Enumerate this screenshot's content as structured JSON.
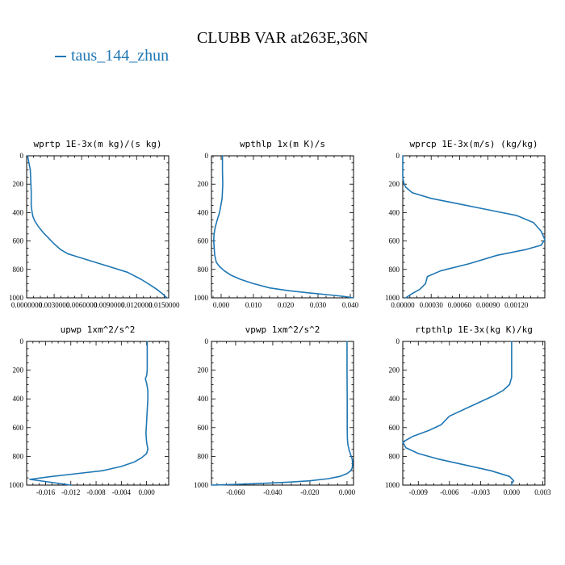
{
  "page": {
    "title": "CLUBB VAR at263E,36N",
    "legend": {
      "label": "taus_144_zhun",
      "color": "#1f77b4"
    }
  },
  "chart_data": [
    {
      "type": "line",
      "title": "wprtp  1E-3x(m kg)/(s kg)",
      "xlim": [
        0,
        0.0155
      ],
      "ylim": [
        1000,
        0
      ],
      "xticks": [
        0,
        0.003,
        0.006,
        0.009,
        0.012,
        0.015
      ],
      "xticklabels": [
        "0.0000000",
        "0.0030000",
        "0.0060000",
        "0.0090000",
        "0.0120000",
        "0.0150000"
      ],
      "yticks": [
        0,
        200,
        400,
        600,
        800,
        1000
      ],
      "series": [
        {
          "x": [
            0.0001,
            0.0004,
            0.0005,
            0.0005,
            0.0006,
            0.0007,
            0.0009,
            0.0013,
            0.0018,
            0.0024,
            0.003,
            0.0037,
            0.0045,
            0.0055,
            0.007,
            0.009,
            0.011,
            0.0125,
            0.0135,
            0.0142,
            0.0148,
            0.0153
          ],
          "y": [
            0,
            100,
            250,
            350,
            400,
            430,
            460,
            500,
            540,
            580,
            620,
            660,
            690,
            710,
            740,
            780,
            820,
            870,
            910,
            940,
            970,
            1000
          ]
        }
      ]
    },
    {
      "type": "line",
      "title": "wpthlp  1x(m K)/s",
      "xlim": [
        -0.003,
        0.041
      ],
      "ylim": [
        1000,
        0
      ],
      "xticks": [
        0,
        0.01,
        0.02,
        0.03,
        0.04
      ],
      "xticklabels": [
        "0.000",
        "0.010",
        "0.020",
        "0.030",
        "0.040"
      ],
      "yticks": [
        0,
        200,
        400,
        600,
        800,
        1000
      ],
      "series": [
        {
          "x": [
            0.0004,
            0.0004,
            0.0005,
            0.0003,
            -0.0005,
            -0.0012,
            -0.0018,
            -0.0022,
            -0.0023,
            -0.002,
            -0.0015,
            -0.0005,
            0.001,
            0.003,
            0.006,
            0.01,
            0.015,
            0.021,
            0.027,
            0.033,
            0.038,
            0.041
          ],
          "y": [
            0,
            100,
            200,
            300,
            400,
            450,
            500,
            550,
            600,
            700,
            750,
            780,
            810,
            840,
            870,
            900,
            930,
            950,
            965,
            978,
            990,
            1000
          ]
        }
      ]
    },
    {
      "type": "line",
      "title": "wprcp  1E-3x(m/s) (kg/kg)",
      "xlim": [
        0,
        0.0015
      ],
      "ylim": [
        1000,
        0
      ],
      "xticks": [
        0,
        0.0003,
        0.0006,
        0.0009,
        0.0012
      ],
      "xticklabels": [
        "0.00000",
        "0.00030",
        "0.00060",
        "0.00090",
        "0.00120"
      ],
      "yticks": [
        0,
        200,
        400,
        600,
        800,
        1000
      ],
      "series": [
        {
          "x": [
            0,
            0,
            1e-05,
            3e-05,
            0.0001,
            0.0003,
            0.0006,
            0.0009,
            0.0012,
            0.00138,
            0.00146,
            0.0015,
            0.00146,
            0.0013,
            0.001,
            0.0007,
            0.0004,
            0.00026,
            0.00024,
            0.00018,
            0.0001,
            3e-05
          ],
          "y": [
            0,
            150,
            190,
            220,
            260,
            300,
            340,
            380,
            420,
            470,
            530,
            590,
            630,
            660,
            700,
            760,
            810,
            850,
            900,
            940,
            970,
            1000
          ]
        }
      ]
    },
    {
      "type": "line",
      "title": "upwp  1xm^2/s^2",
      "xlim": [
        -0.019,
        0.0035
      ],
      "ylim": [
        1000,
        0
      ],
      "xticks": [
        -0.016,
        -0.012,
        -0.008,
        -0.004,
        0
      ],
      "xticklabels": [
        "-0.016",
        "-0.012",
        "-0.008",
        "-0.004",
        "0.000"
      ],
      "yticks": [
        0,
        200,
        400,
        600,
        800,
        1000
      ],
      "series": [
        {
          "x": [
            0.0001,
            0.0001,
            0.0001,
            0,
            -0.0002,
            0,
            0.0002,
            0.0002,
            0.0001,
            0,
            -0.0001,
            0,
            0.0002,
            0,
            -0.0008,
            -0.002,
            -0.004,
            -0.007,
            -0.011,
            -0.015,
            -0.0185,
            -0.012
          ],
          "y": [
            0,
            100,
            200,
            240,
            260,
            290,
            340,
            400,
            480,
            560,
            640,
            700,
            750,
            780,
            810,
            840,
            870,
            900,
            920,
            940,
            960,
            1000
          ]
        }
      ]
    },
    {
      "type": "line",
      "title": "vpwp  1xm^2/s^2",
      "xlim": [
        -0.073,
        0.0035
      ],
      "ylim": [
        1000,
        0
      ],
      "xticks": [
        -0.06,
        -0.04,
        -0.02,
        0
      ],
      "xticklabels": [
        "-0.060",
        "-0.040",
        "-0.020",
        "0.000"
      ],
      "yticks": [
        0,
        200,
        400,
        600,
        800,
        1000
      ],
      "series": [
        {
          "x": [
            0,
            0,
            0.0001,
            0.0001,
            0.0002,
            0.0005,
            0.0012,
            0.002,
            0.0028,
            0.003,
            0.0028,
            0.002,
            0,
            -0.004,
            -0.01,
            -0.02,
            -0.032,
            -0.045,
            -0.058,
            -0.068,
            -0.073
          ],
          "y": [
            0,
            200,
            400,
            600,
            680,
            720,
            760,
            790,
            820,
            850,
            880,
            900,
            920,
            940,
            955,
            970,
            980,
            988,
            994,
            998,
            1000
          ]
        }
      ]
    },
    {
      "type": "line",
      "title": "rtpthlp  1E-3x(kg K)/kg",
      "xlim": [
        -0.0105,
        0.0032
      ],
      "ylim": [
        1000,
        0
      ],
      "xticks": [
        -0.009,
        -0.006,
        -0.003,
        0,
        0.003
      ],
      "xticklabels": [
        "-0.009",
        "-0.006",
        "-0.003",
        "0.000",
        "0.003"
      ],
      "yticks": [
        0,
        200,
        400,
        600,
        800,
        1000
      ],
      "series": [
        {
          "x": [
            0,
            0,
            0,
            -0.0002,
            -0.0008,
            -0.0018,
            -0.003,
            -0.0045,
            -0.006,
            -0.0068,
            -0.008,
            -0.0095,
            -0.0105,
            -0.0102,
            -0.009,
            -0.007,
            -0.0045,
            -0.002,
            -0.0002,
            0.0002,
            0,
            0
          ],
          "y": [
            0,
            150,
            250,
            300,
            340,
            380,
            420,
            470,
            520,
            580,
            620,
            660,
            700,
            740,
            780,
            820,
            860,
            900,
            940,
            970,
            990,
            1000
          ]
        }
      ]
    }
  ]
}
